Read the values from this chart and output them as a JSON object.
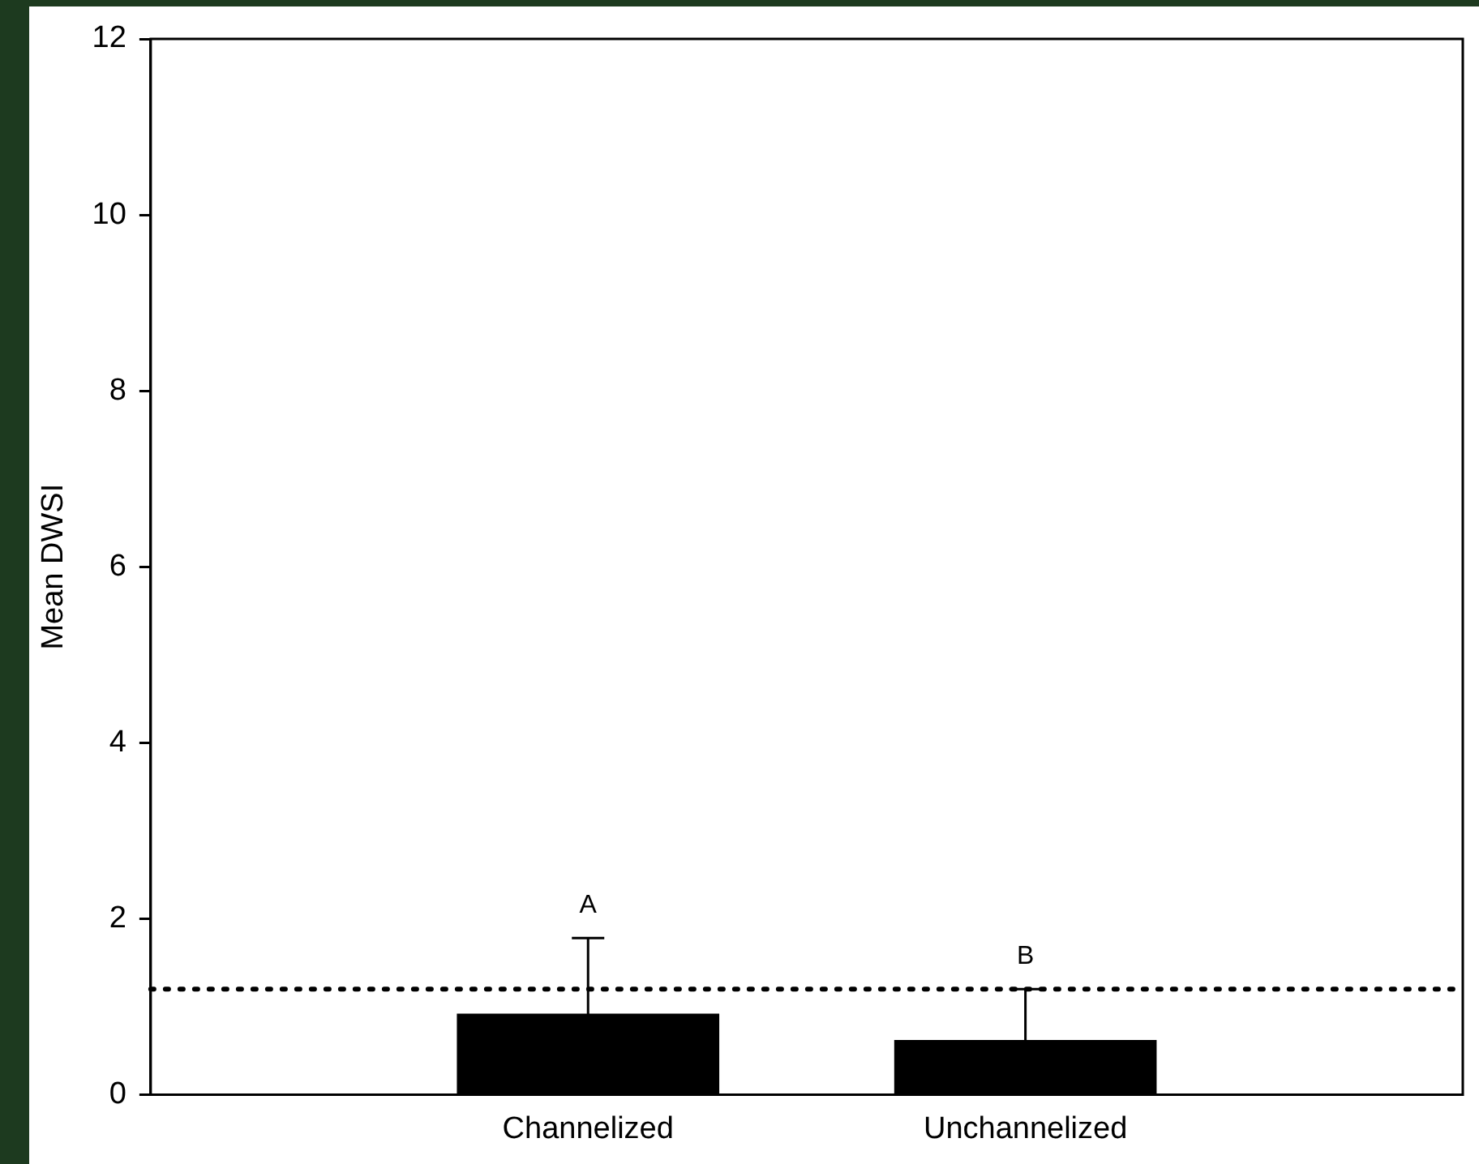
{
  "chart_data": {
    "type": "bar",
    "ylabel": "Mean DWSI",
    "categories": [
      null,
      "Channelized",
      "Unchannelized",
      null
    ],
    "values": [
      null,
      0.92,
      0.62,
      null
    ],
    "errors": [
      null,
      0.86,
      0.58,
      null
    ],
    "color": "#000000",
    "ylim": [
      0,
      12
    ],
    "yticks": [
      0,
      2,
      4,
      6,
      8,
      10,
      12
    ],
    "grid": false,
    "legend": false,
    "ref_lines": [
      {
        "axis": "y",
        "value": 1.2,
        "color": "#000000",
        "line_style": "dotted"
      }
    ],
    "annotations": [
      {
        "text": "A",
        "x": "Channelized",
        "y": 1.78
      },
      {
        "text": "B",
        "x": "Unchannelized",
        "y": 1.2
      }
    ]
  }
}
